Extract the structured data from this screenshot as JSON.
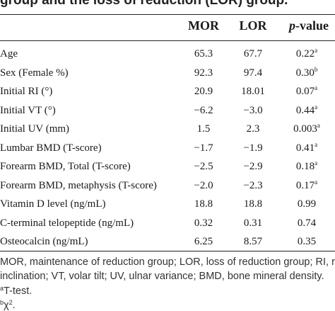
{
  "caption_fragment": "group and the loss of reduction (LOR) group.",
  "headers": {
    "label": "",
    "mor": "MOR",
    "lor": "LOR",
    "p_italic": "p",
    "p_rest": "-value"
  },
  "rows": [
    {
      "label": "Age",
      "mor": "65.3",
      "lor": "67.7",
      "p": "0.22",
      "sup": "a"
    },
    {
      "label": "Sex (Female %)",
      "mor": "92.3",
      "lor": "97.4",
      "p": "0.30",
      "sup": "b"
    },
    {
      "label": "Initial RI (°)",
      "mor": "20.9",
      "lor": "18.01",
      "p": "0.07",
      "sup": "a"
    },
    {
      "label": "Initial VT (°)",
      "mor": "−6.2",
      "lor": "−3.0",
      "p": "0.44",
      "sup": "a"
    },
    {
      "label": "Initial UV (mm)",
      "mor": "1.5",
      "lor": "2.3",
      "p": "0.003",
      "sup": "a"
    },
    {
      "label": "Lumbar BMD (T-score)",
      "mor": "−1.7",
      "lor": "−1.9",
      "p": "0.41",
      "sup": "a"
    },
    {
      "label": "Forearm BMD, Total (T-score)",
      "mor": "−2.5",
      "lor": "−2.9",
      "p": "0.18",
      "sup": "a"
    },
    {
      "label": "Forearm BMD, metaphysis (T-score)",
      "mor": "−2.0",
      "lor": "−2.3",
      "p": "0.17",
      "sup": "a"
    },
    {
      "label": "Vitamin D level (ng/mL)",
      "mor": "18.8",
      "lor": "18.8",
      "p": "0.99",
      "sup": ""
    },
    {
      "label": "C-terminal telopeptide (ng/mL)",
      "mor": "0.32",
      "lor": "0.31",
      "p": "0.74",
      "sup": ""
    },
    {
      "label": "Osteocalcin (ng/mL)",
      "mor": "6.25",
      "lor": "8.57",
      "p": "0.35",
      "sup": ""
    }
  ],
  "footnotes": {
    "line1": "MOR, maintenance of reduction group; LOR, loss of reduction group; RI, radial",
    "line2": "inclination; VT, volar tilt; UV, ulnar variance; BMD, bone mineral density.",
    "a_mark": "a",
    "a_text": "T-test.",
    "b_mark": "b",
    "b_text": "χ",
    "b_exp": "2",
    "b_end": "."
  }
}
